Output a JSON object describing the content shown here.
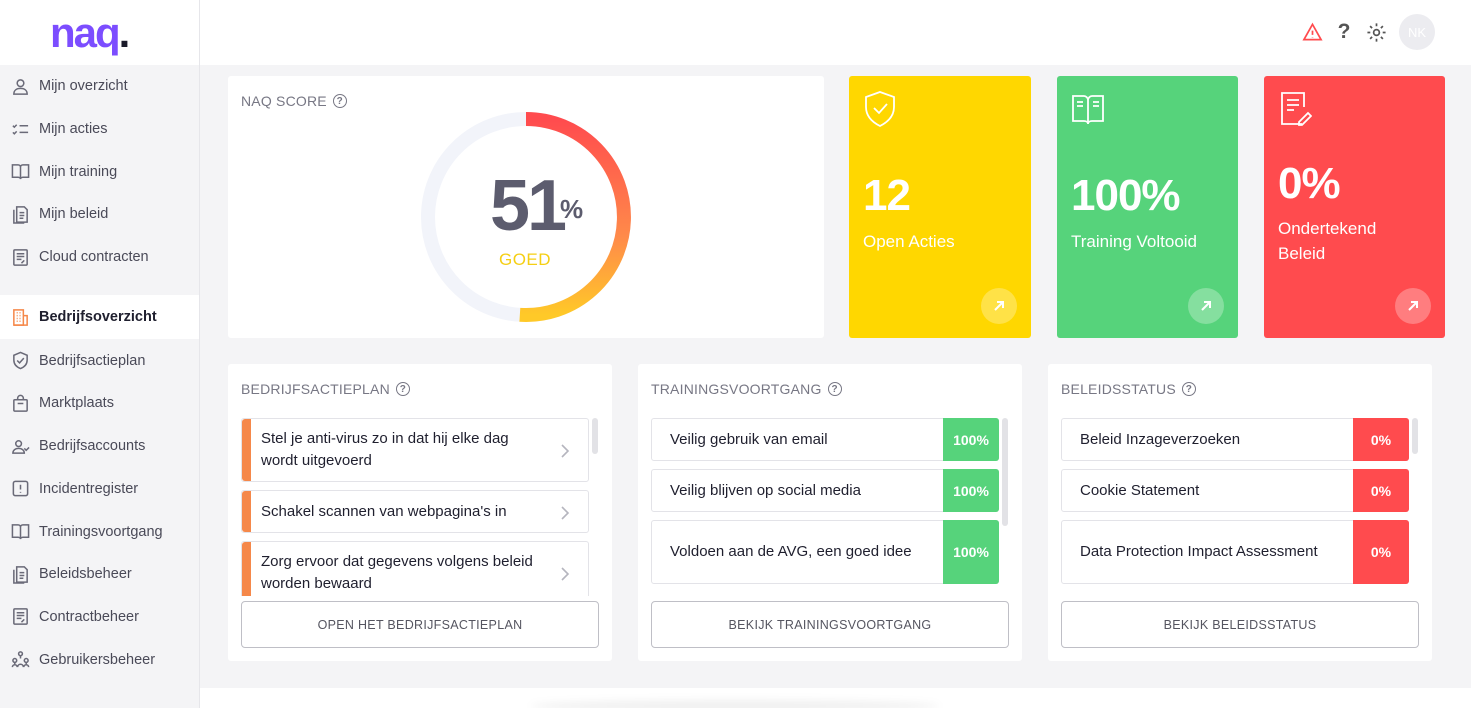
{
  "logo": {
    "text": "naq",
    "dot": "."
  },
  "nav": {
    "items": [
      {
        "label": "Mijn overzicht",
        "icon": "user-icon"
      },
      {
        "label": "Mijn acties",
        "icon": "checklist-icon"
      },
      {
        "label": "Mijn training",
        "icon": "book-icon"
      },
      {
        "label": "Mijn beleid",
        "icon": "document-icon"
      },
      {
        "label": "Cloud contracten",
        "icon": "contract-icon"
      }
    ],
    "company_items": [
      {
        "label": "Bedrijfsoverzicht",
        "icon": "building-icon",
        "active": true
      },
      {
        "label": "Bedrijfsactieplan",
        "icon": "shield-icon"
      },
      {
        "label": "Marktplaats",
        "icon": "bag-icon"
      },
      {
        "label": "Bedrijfsaccounts",
        "icon": "users-icon"
      },
      {
        "label": "Incidentregister",
        "icon": "alert-icon"
      },
      {
        "label": "Trainingsvoortgang",
        "icon": "book-icon"
      },
      {
        "label": "Beleidsbeheer",
        "icon": "document-icon"
      },
      {
        "label": "Contractbeheer",
        "icon": "contract-icon"
      },
      {
        "label": "Gebruikersbeheer",
        "icon": "org-icon"
      }
    ]
  },
  "header": {
    "help": "?",
    "avatar": "NK"
  },
  "score": {
    "title": "NAQ SCORE",
    "value": "51",
    "unit": "%",
    "label": "GOED",
    "fraction": 0.51
  },
  "stats": [
    {
      "value": "12",
      "label": "Open Acties"
    },
    {
      "value": "100%",
      "label": "Training Voltooid"
    },
    {
      "value": "0%",
      "label": "Ondertekend Beleid"
    }
  ],
  "actionplan": {
    "title": "BEDRIJFSACTIEPLAN",
    "rows": [
      "Stel je anti-virus zo in dat hij elke dag wordt uitgevoerd",
      "Schakel scannen van webpagina's in",
      "Zorg ervoor dat gegevens volgens beleid worden bewaard"
    ],
    "button": "OPEN HET BEDRIJFSACTIEPLAN"
  },
  "training": {
    "title": "TRAININGSVOORTGANG",
    "rows": [
      {
        "label": "Veilig gebruik van email",
        "value": "100%"
      },
      {
        "label": "Veilig blijven op social media",
        "value": "100%"
      },
      {
        "label": "Voldoen aan de AVG, een goed idee",
        "value": "100%"
      }
    ],
    "button": "BEKIJK TRAININGSVOORTGANG"
  },
  "policy": {
    "title": "BELEIDSSTATUS",
    "rows": [
      {
        "label": "Beleid Inzageverzoeken",
        "value": "0%"
      },
      {
        "label": "Cookie Statement",
        "value": "0%"
      },
      {
        "label": "Data Protection Impact Assessment",
        "value": "0%"
      }
    ],
    "button": "BEKIJK BELEIDSSTATUS"
  },
  "colors": {
    "accent": "#7c4dff",
    "yellow": "#ffd700",
    "green": "#56d37b",
    "red": "#ff4b4e",
    "orange": "#f5884a"
  }
}
